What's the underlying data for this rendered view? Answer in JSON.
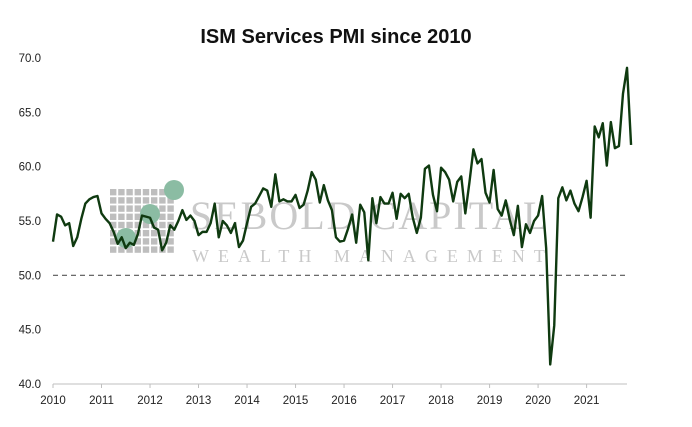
{
  "chart_data": {
    "type": "line",
    "title": "ISM Services PMI since 2010",
    "xlabel": "",
    "ylabel": "",
    "xlim": [
      2010,
      2021.833
    ],
    "ylim": [
      40,
      70
    ],
    "yticks": [
      "40.0",
      "45.0",
      "50.0",
      "55.0",
      "60.0",
      "65.0",
      "70.0"
    ],
    "xticks": [
      "2010",
      "2011",
      "2012",
      "2013",
      "2014",
      "2015",
      "2016",
      "2017",
      "2018",
      "2019",
      "2020",
      "2021"
    ],
    "reference_line": {
      "value": 50,
      "style": "dashed"
    },
    "grid": false,
    "line_color": "#0f3a10",
    "series": [
      {
        "start": "2010-01",
        "frequency": "monthly",
        "values": [
          53.1,
          55.6,
          55.4,
          54.6,
          54.8,
          52.7,
          53.5,
          55.2,
          56.6,
          57.0,
          57.2,
          57.3,
          55.7,
          55.2,
          54.8,
          54.0,
          52.9,
          53.5,
          52.5,
          53.0,
          52.8,
          53.8,
          55.5,
          55.4,
          55.3,
          54.4,
          54.2,
          52.3,
          53.0,
          54.6,
          54.2,
          55.0,
          56.0,
          55.1,
          55.5,
          55.0,
          53.7,
          54.0,
          54.0,
          54.8,
          56.6,
          53.5,
          55.0,
          54.6,
          53.9,
          54.8,
          52.6,
          53.2,
          54.8,
          56.3,
          56.6,
          57.3,
          58.0,
          57.8,
          56.3,
          59.3,
          56.8,
          57.0,
          56.8,
          56.8,
          57.4,
          56.2,
          56.5,
          57.8,
          59.5,
          58.8,
          56.7,
          58.3,
          56.9,
          56.0,
          53.5,
          53.1,
          53.2,
          54.3,
          55.6,
          53.0,
          56.5,
          55.8,
          51.4,
          57.1,
          54.8,
          57.2,
          56.6,
          56.6,
          57.6,
          55.2,
          57.5,
          57.1,
          57.5,
          55.3,
          53.9,
          55.3,
          59.8,
          60.1,
          57.4,
          55.9,
          59.9,
          59.5,
          58.8,
          56.8,
          58.6,
          59.1,
          55.7,
          58.5,
          61.6,
          60.3,
          60.7,
          57.6,
          56.7,
          59.7,
          56.1,
          55.5,
          56.9,
          55.1,
          53.7,
          56.4,
          52.6,
          54.7,
          53.9,
          55.0,
          55.5,
          57.3,
          52.5,
          41.8,
          45.4,
          57.1,
          58.1,
          56.9,
          57.8,
          56.6,
          55.9,
          57.2,
          58.7,
          55.3,
          63.7,
          62.7,
          64.0,
          60.1,
          64.1,
          61.7,
          61.9,
          66.7,
          69.1,
          62.0
        ]
      }
    ]
  },
  "watermark": {
    "brand": "SEBOLD CAPITAL",
    "tagline": "WEALTH MANAGEMENT"
  }
}
